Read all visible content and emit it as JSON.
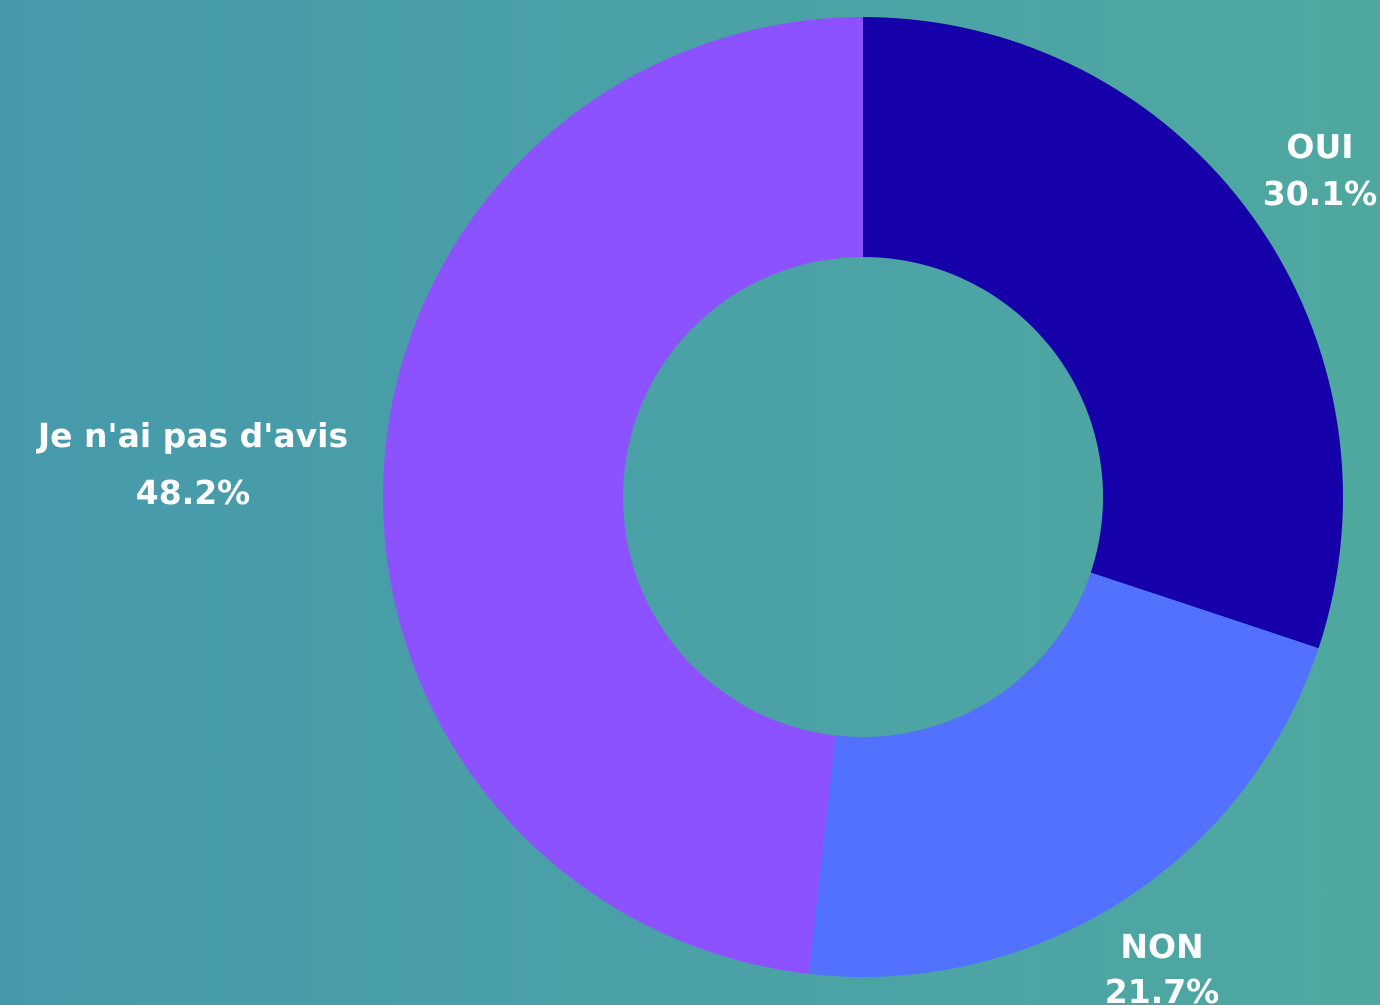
{
  "chart_data": {
    "type": "pie",
    "donut": true,
    "title": "",
    "slices": [
      {
        "label": "OUI",
        "value": 30.1,
        "value_label": "30.1%",
        "color": "#1600aa"
      },
      {
        "label": "NON",
        "value": 21.7,
        "value_label": "21.7%",
        "color": "#5271ff"
      },
      {
        "label": "Je n'ai pas d'avis",
        "value": 48.2,
        "value_label": "48.2%",
        "color": "#8c52ff"
      }
    ],
    "start_angle": "12 o'clock",
    "direction": "clockwise",
    "legend": "none",
    "background_color": "#4ba2a6"
  }
}
